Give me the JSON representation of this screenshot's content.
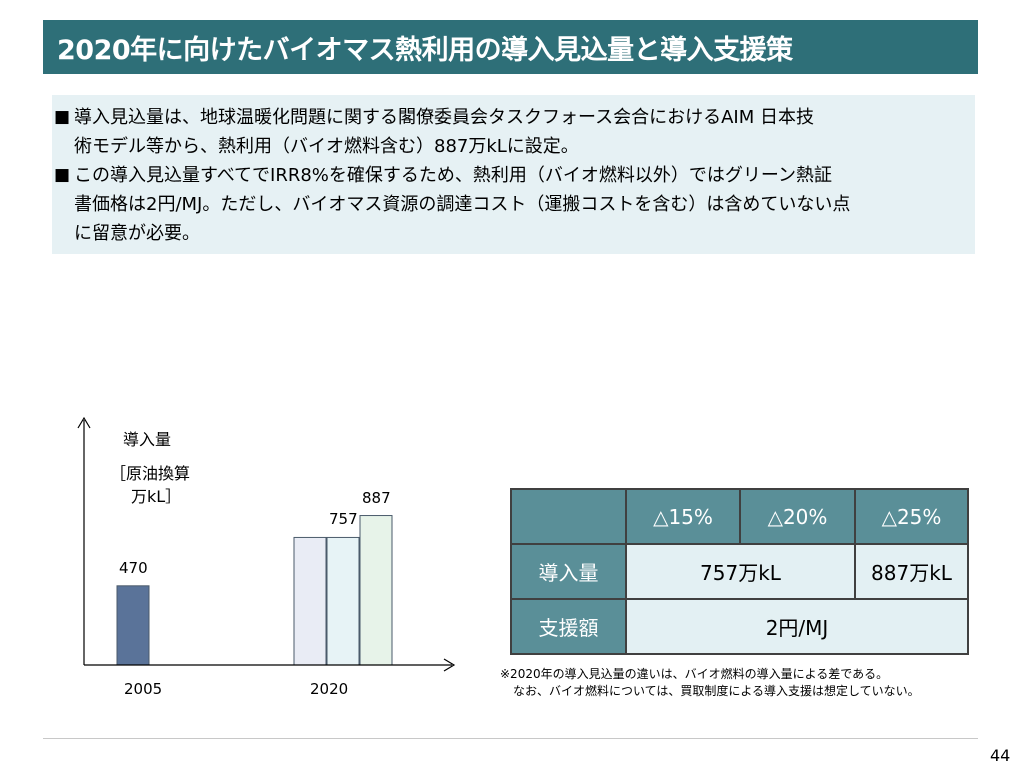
{
  "title": "2020年に向けたバイオマス熱利用の導入見込量と導入支援策",
  "bullets": [
    {
      "mark": "■",
      "line1": "導入見込量は、地球温暖化問題に関する閣僚委員会タスクフォース会合におけるAIM 日本技",
      "line2": "術モデル等から、熱利用（バイオ燃料含む）887万kLに設定。"
    },
    {
      "mark": "■",
      "line1": "この導入見込量すべてでIRR8%を確保するため、熱利用（バイオ燃料以外）ではグリーン熱証",
      "line2": "書価格は2円/MJ。ただし、バイオマス資源の調達コスト（運搬コストを含む）は含めていない点",
      "line3": "に留意が必要。"
    }
  ],
  "chart_data": {
    "type": "bar",
    "ylabel": "導入量",
    "yunit_line1": "［原油換算",
    "yunit_line2": "万kL］",
    "categories": [
      "2005",
      "2020"
    ],
    "bars": [
      {
        "category": "2005",
        "value": 470,
        "label": "470",
        "color": "#5a7399"
      },
      {
        "category": "2020",
        "value": 757,
        "label": "",
        "color": "#e9ecf5"
      },
      {
        "category": "2020",
        "value": 757,
        "label": "757",
        "color": "#e7f3f6"
      },
      {
        "category": "2020",
        "value": 887,
        "label": "887",
        "color": "#e7f3e9"
      }
    ],
    "ylim": [
      0,
      1000
    ]
  },
  "table": {
    "header": [
      "",
      "△15%",
      "△20%",
      "△25%"
    ],
    "row1": {
      "label": "導入量",
      "value_a": "757万kL",
      "value_b": "887万kL"
    },
    "row2": {
      "label": "支援額",
      "value": "2円/MJ"
    }
  },
  "note": {
    "line1": "※2020年の導入見込量の違いは、バイオ燃料の導入量による差である。",
    "line2": "なお、バイオ燃料については、買取制度による導入支援は想定していない。"
  },
  "page_number": "44"
}
